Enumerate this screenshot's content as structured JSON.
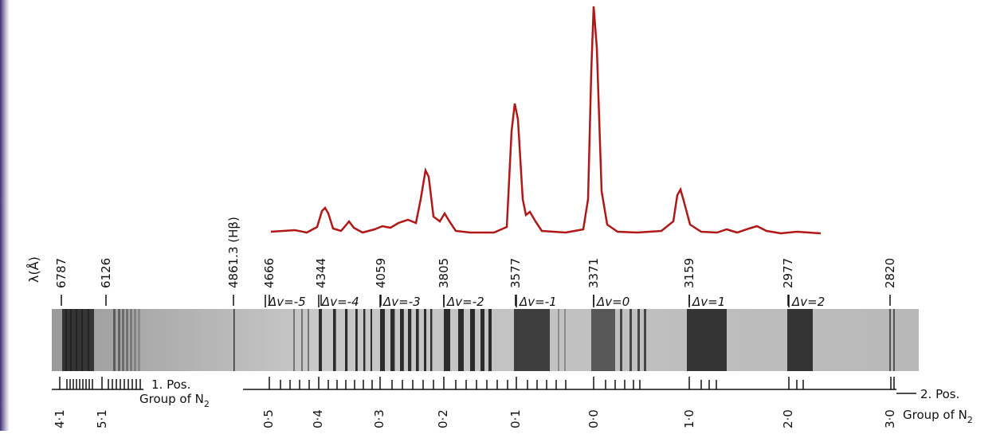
{
  "axis_label": "λ(Å)",
  "wavelengths": [
    "6787",
    "6126",
    "4861.3 (Hβ)",
    "4666",
    "4344",
    "4059",
    "3805",
    "3577",
    "3371",
    "3159",
    "2977",
    "2820"
  ],
  "delta_v": [
    "Δv=-5",
    "Δv=-4",
    "Δv=-3",
    "Δv=-2",
    "Δv=-1",
    "Δv=0",
    "Δv=1",
    "Δv=2"
  ],
  "transitions": [
    "4·1",
    "5·1",
    "0·5",
    "0·4",
    "0·3",
    "0·2",
    "0·1",
    "0·0",
    "1·0",
    "2·0",
    "3·0"
  ],
  "group_1": {
    "name": "1. Pos.",
    "text": "Group of N",
    "sub": "2"
  },
  "group_2": {
    "name": "2. Pos.",
    "text": "Group of N",
    "sub": "2"
  }
}
